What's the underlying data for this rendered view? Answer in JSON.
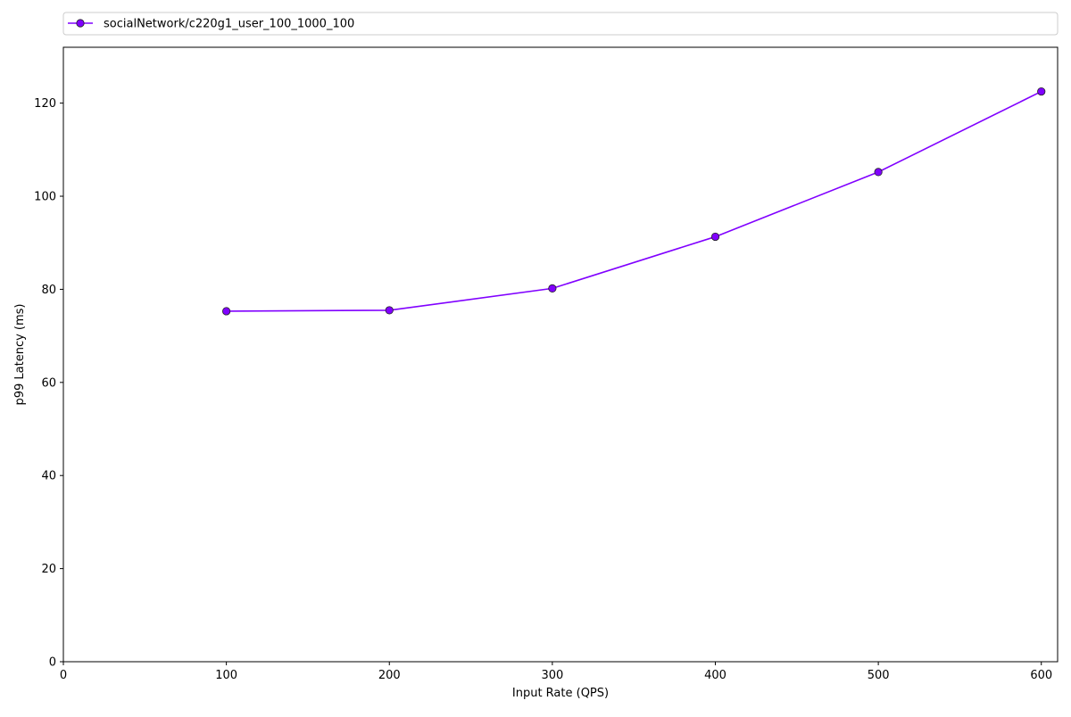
{
  "chart_data": {
    "type": "line",
    "title": "",
    "xlabel": "Input Rate (QPS)",
    "ylabel": "p99 Latency (ms)",
    "xlim": [
      0,
      610
    ],
    "ylim": [
      0,
      132
    ],
    "xticks": [
      0,
      100,
      200,
      300,
      400,
      500,
      600
    ],
    "yticks": [
      0,
      20,
      40,
      60,
      80,
      100,
      120
    ],
    "grid": false,
    "legend_position": "top, above plot area",
    "series": [
      {
        "name": "socialNetwork/c220g1_user_100_1000_100",
        "color": "#8000ff",
        "marker": "circle",
        "x": [
          100,
          200,
          300,
          400,
          500,
          600
        ],
        "y": [
          75.3,
          75.5,
          80.2,
          91.3,
          105.2,
          122.5
        ]
      }
    ]
  }
}
